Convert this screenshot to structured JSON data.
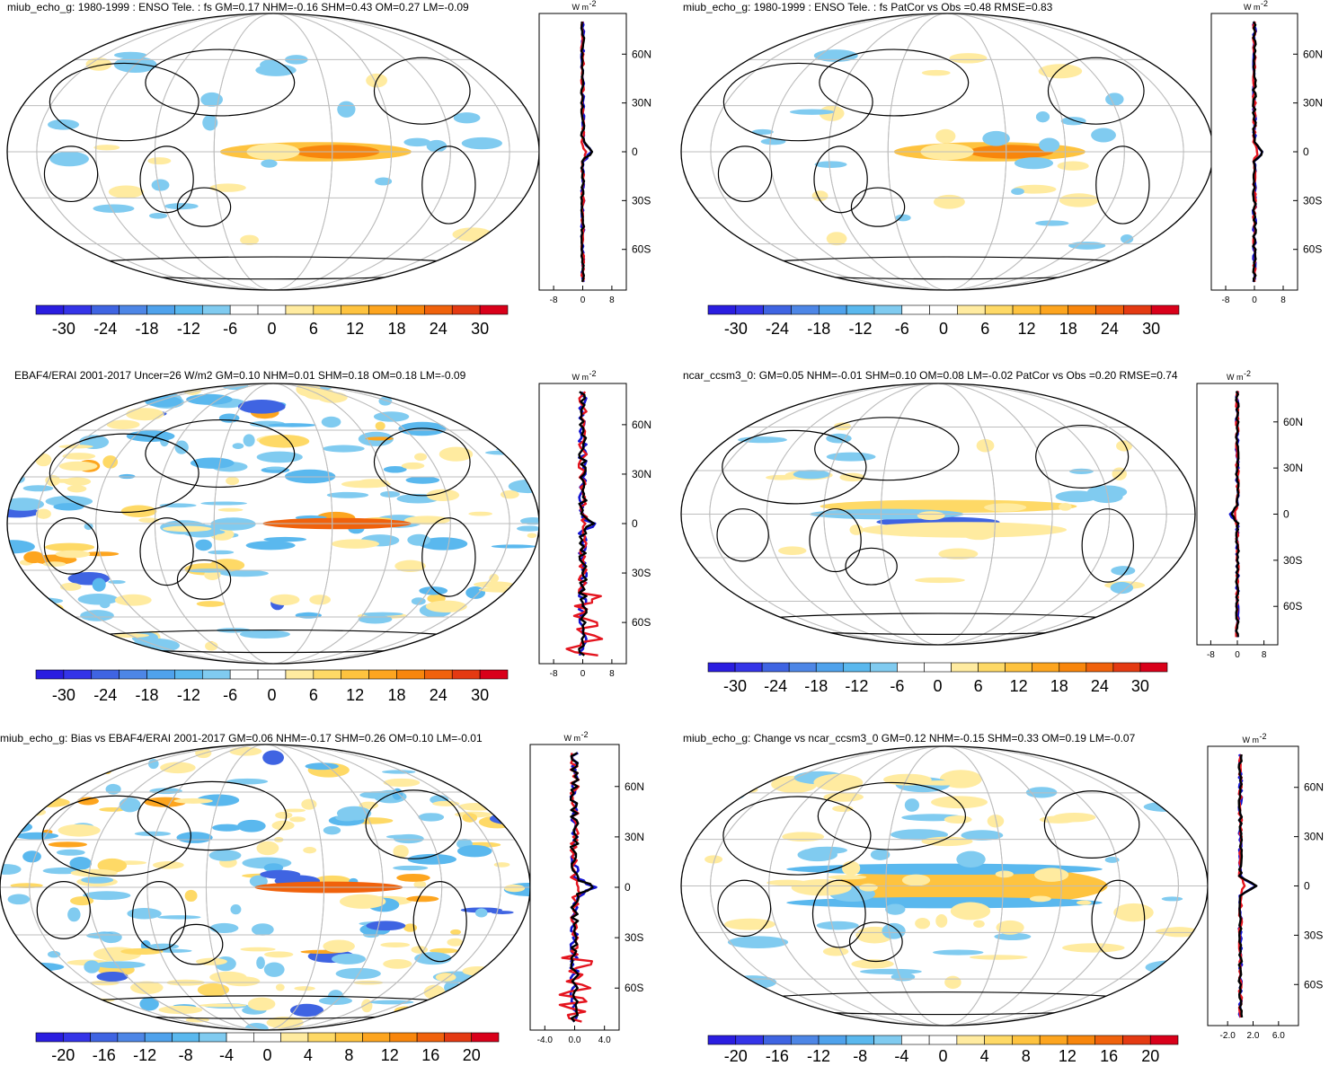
{
  "figure": {
    "units_label": "W m",
    "units_exponent": "-2",
    "lat_tick_labels": [
      "60N",
      "30N",
      "0",
      "30S",
      "60S"
    ],
    "lat_tick_values": [
      60,
      30,
      0,
      -30,
      -60
    ]
  },
  "palette": {
    "coolest": "#2a1de0",
    "cool": "#5fb4ea",
    "neutral": "#ffffff",
    "warm": "#ffe48a",
    "warmest": "#d9001a",
    "line_obs": "#1414d0",
    "line_model": "#e4141e",
    "line_mean": "#000000",
    "gridline": "#bdbdbd"
  },
  "panels": [
    {
      "id": "p1",
      "title": "miub_echo_g: 1980-1999 : ENSO Tele. : fs GM=0.17 NHM=-0.16 SHM=0.43 OM=0.27 LM=-0.09",
      "colorbar_labels": [
        "-30",
        "-24",
        "-18",
        "-12",
        "-6",
        "0",
        "6",
        "12",
        "18",
        "24",
        "30"
      ],
      "profile_ticks": [
        "-8",
        "0",
        "8"
      ],
      "profile_range": [
        -10,
        10
      ],
      "pattern": "enso"
    },
    {
      "id": "p2",
      "title": "miub_echo_g: 1980-1999 : ENSO Tele. : fs PatCor vs Obs =0.48 RMSE=0.83",
      "colorbar_labels": [
        "-30",
        "-24",
        "-18",
        "-12",
        "-6",
        "0",
        "6",
        "12",
        "18",
        "24",
        "30"
      ],
      "profile_ticks": [
        "-8",
        "0",
        "8"
      ],
      "profile_range": [
        -10,
        10
      ],
      "pattern": "enso"
    },
    {
      "id": "p3",
      "title": "EBAF4/ERAI 2001-2017 Uncer=26 W/m2 GM=0.10 NHM=0.01 SHM=0.18 OM=0.18 LM=-0.09",
      "colorbar_labels": [
        "-30",
        "-24",
        "-18",
        "-12",
        "-6",
        "0",
        "6",
        "12",
        "18",
        "24",
        "30"
      ],
      "profile_ticks": [
        "-8",
        "0",
        "8"
      ],
      "profile_range": [
        -10,
        10
      ],
      "pattern": "noisy"
    },
    {
      "id": "p4",
      "title": "ncar_ccsm3_0: GM=0.05 NHM=-0.01 SHM=0.10 OM=0.08 LM=-0.02 PatCor vs Obs =0.20 RMSE=0.74",
      "colorbar_labels": [
        "-30",
        "-24",
        "-18",
        "-12",
        "-6",
        "0",
        "6",
        "12",
        "18",
        "24",
        "30"
      ],
      "profile_ticks": [
        "-8",
        "0",
        "8"
      ],
      "profile_range": [
        -10,
        10
      ],
      "pattern": "dipole"
    },
    {
      "id": "p5",
      "title": "miub_echo_g: Bias vs EBAF4/ERAI 2001-2017 GM=0.06 NHM=-0.17 SHM=0.26 OM=0.10 LM=-0.01",
      "colorbar_labels": [
        "-20",
        "-16",
        "-12",
        "-8",
        "-4",
        "0",
        "4",
        "8",
        "12",
        "16",
        "20"
      ],
      "profile_ticks": [
        "-4.0",
        "0.0",
        "4.0"
      ],
      "profile_range": [
        -5,
        5
      ],
      "pattern": "noisy"
    },
    {
      "id": "p6",
      "title": "miub_echo_g: Change vs ncar_ccsm3_0 GM=0.12 NHM=-0.15 SHM=0.33 OM=0.19 LM=-0.07",
      "colorbar_labels": [
        "-20",
        "-16",
        "-12",
        "-8",
        "-4",
        "0",
        "4",
        "8",
        "12",
        "16",
        "20"
      ],
      "profile_ticks": [
        "-2.0",
        "2.0",
        "6.0"
      ],
      "profile_range": [
        -4,
        8
      ],
      "pattern": "change"
    }
  ]
}
